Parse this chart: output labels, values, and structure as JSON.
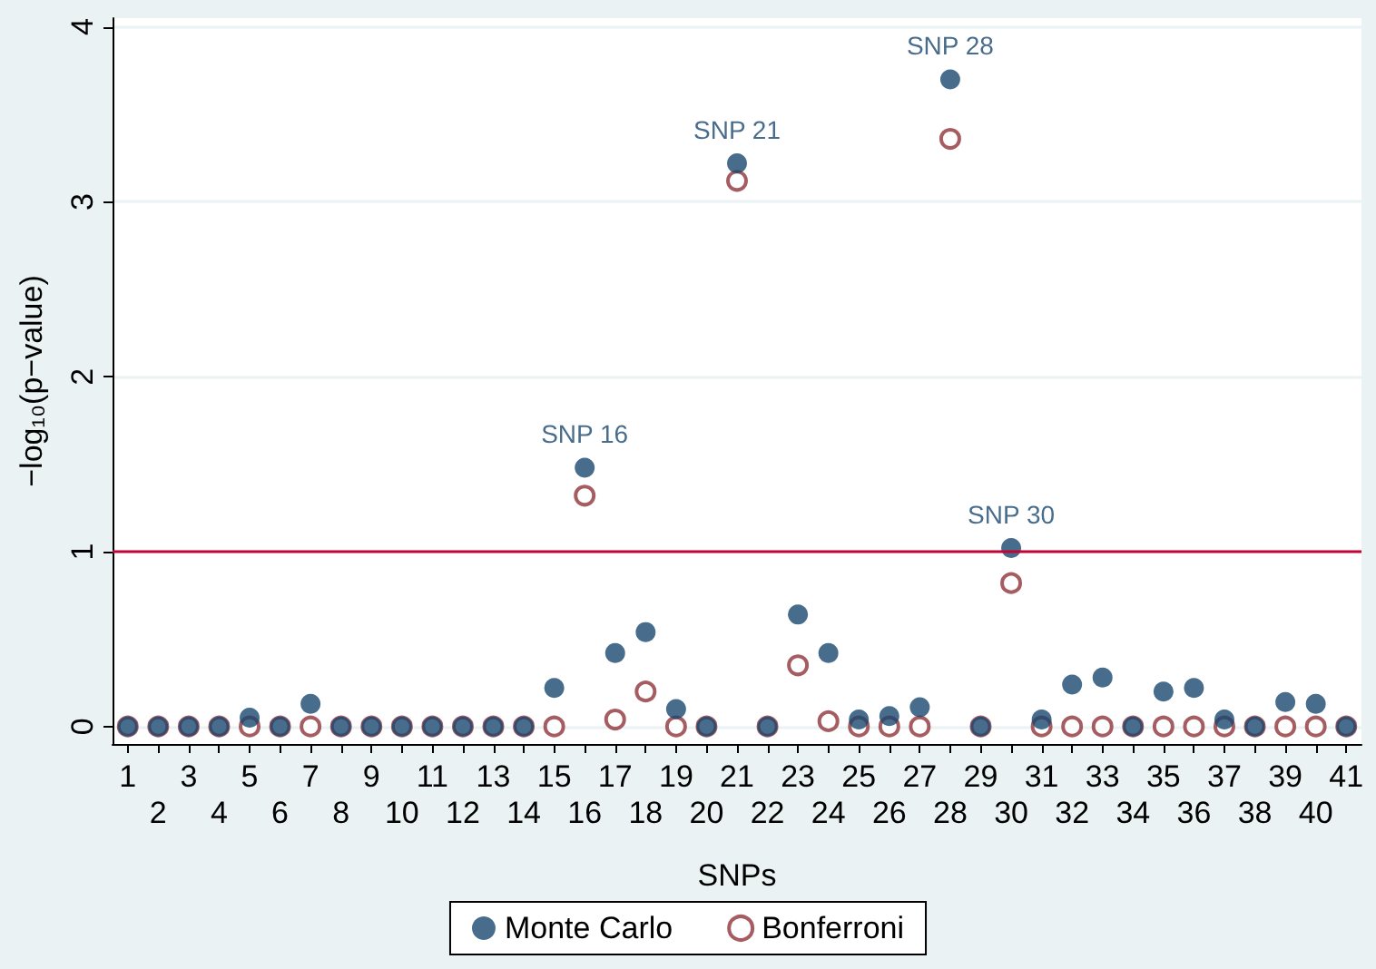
{
  "chart_data": {
    "type": "scatter",
    "xlabel": "SNPs",
    "ylabel": "−log₁₀(p−value)",
    "categories": [
      "1",
      "2",
      "3",
      "4",
      "5",
      "6",
      "7",
      "8",
      "9",
      "10",
      "11",
      "12",
      "13",
      "14",
      "15",
      "16",
      "17",
      "18",
      "19",
      "20",
      "21",
      "22",
      "23",
      "24",
      "25",
      "26",
      "27",
      "28",
      "29",
      "30",
      "31",
      "32",
      "33",
      "34",
      "35",
      "36",
      "37",
      "38",
      "39",
      "40",
      "41"
    ],
    "series": [
      {
        "name": "Monte Carlo",
        "color": "#1a476f",
        "marker": "circle",
        "values": [
          0,
          0,
          0,
          0,
          0.05,
          0,
          0.13,
          0,
          0,
          0,
          0,
          0,
          0,
          0,
          0.22,
          1.48,
          0.42,
          0.54,
          0.1,
          0,
          3.22,
          0,
          0.64,
          0.42,
          0.04,
          0.06,
          0.11,
          3.7,
          0,
          1.02,
          0.04,
          0.24,
          0.28,
          0,
          0.2,
          0.22,
          0.04,
          0,
          0.14,
          0.13,
          0
        ]
      },
      {
        "name": "Bonferroni",
        "color": "#90353b",
        "marker": "circle-open",
        "values": [
          0,
          0,
          0,
          0,
          0,
          0,
          0,
          0,
          0,
          0,
          0,
          0,
          0,
          0,
          0,
          1.32,
          0.04,
          0.2,
          0,
          0,
          3.12,
          0,
          0.35,
          0.03,
          0,
          0,
          0,
          3.36,
          0,
          0.82,
          0,
          0,
          0,
          0,
          0,
          0,
          0,
          0,
          0,
          0,
          0
        ]
      }
    ],
    "ylim": [
      -0.1,
      4.05
    ],
    "yticks": [
      0,
      1,
      2,
      3,
      4
    ],
    "grid": "y",
    "legend": "bottom",
    "ref_lines": [
      {
        "axis": "y",
        "value": 1,
        "color": "#c10534"
      }
    ],
    "annotations": [
      {
        "text": "SNP 16",
        "x": "16",
        "y": 1.48
      },
      {
        "text": "SNP 21",
        "x": "21",
        "y": 3.22
      },
      {
        "text": "SNP 28",
        "x": "28",
        "y": 3.7
      },
      {
        "text": "SNP 30",
        "x": "30",
        "y": 1.02
      }
    ]
  }
}
